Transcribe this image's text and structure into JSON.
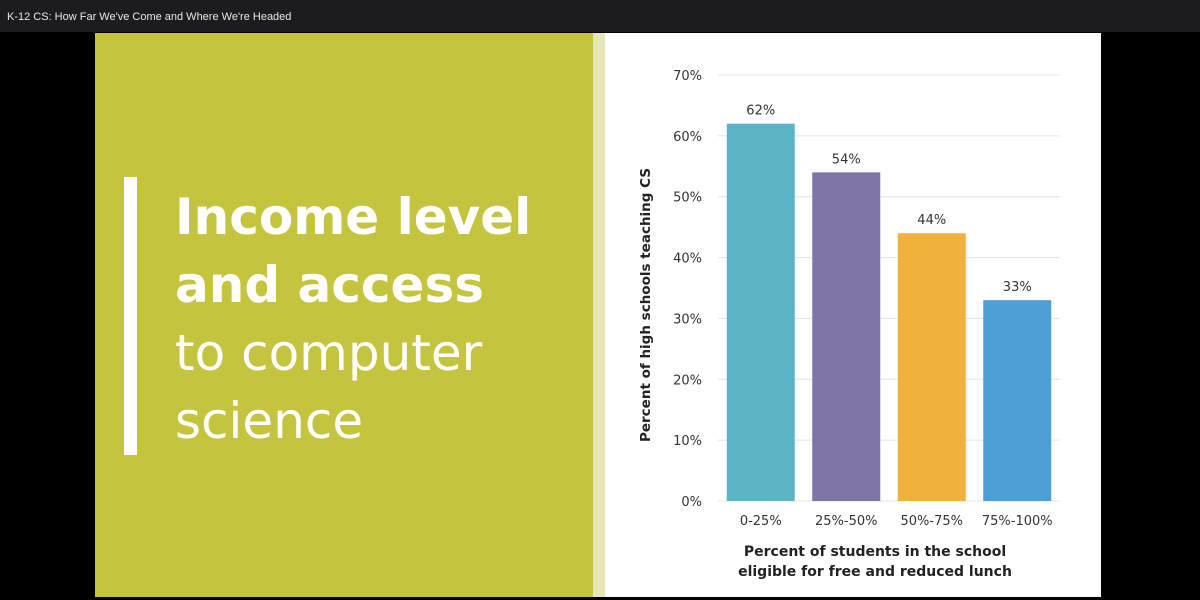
{
  "window": {
    "title": "K-12 CS: How Far We've Come and Where We're Headed"
  },
  "slide": {
    "colors": {
      "panel": "#c4c43f",
      "band": "#e6e7b5",
      "accent": "#ffffff"
    },
    "headline": {
      "bold_lines": [
        "Income level",
        "and access"
      ],
      "light_lines": [
        "to computer",
        "science"
      ]
    }
  },
  "chart_data": {
    "type": "bar",
    "categories": [
      "0-25%",
      "25%-50%",
      "50%-75%",
      "75%-100%"
    ],
    "values": [
      62,
      54,
      44,
      33
    ],
    "data_labels": [
      "62%",
      "54%",
      "44%",
      "33%"
    ],
    "colors": [
      "#5bb4c5",
      "#7f74a8",
      "#f0b23c",
      "#4e9fd6"
    ],
    "title": "",
    "ylabel": "Percent of high schools teaching CS",
    "xlabel_lines": [
      "Percent of students in the school",
      "eligible for free and reduced lunch"
    ],
    "ylim": [
      0,
      70
    ],
    "yticks": [
      0,
      10,
      20,
      30,
      40,
      50,
      60,
      70
    ],
    "ytick_labels": [
      "0%",
      "10%",
      "20%",
      "30%",
      "40%",
      "50%",
      "60%",
      "70%"
    ],
    "grid": true
  }
}
